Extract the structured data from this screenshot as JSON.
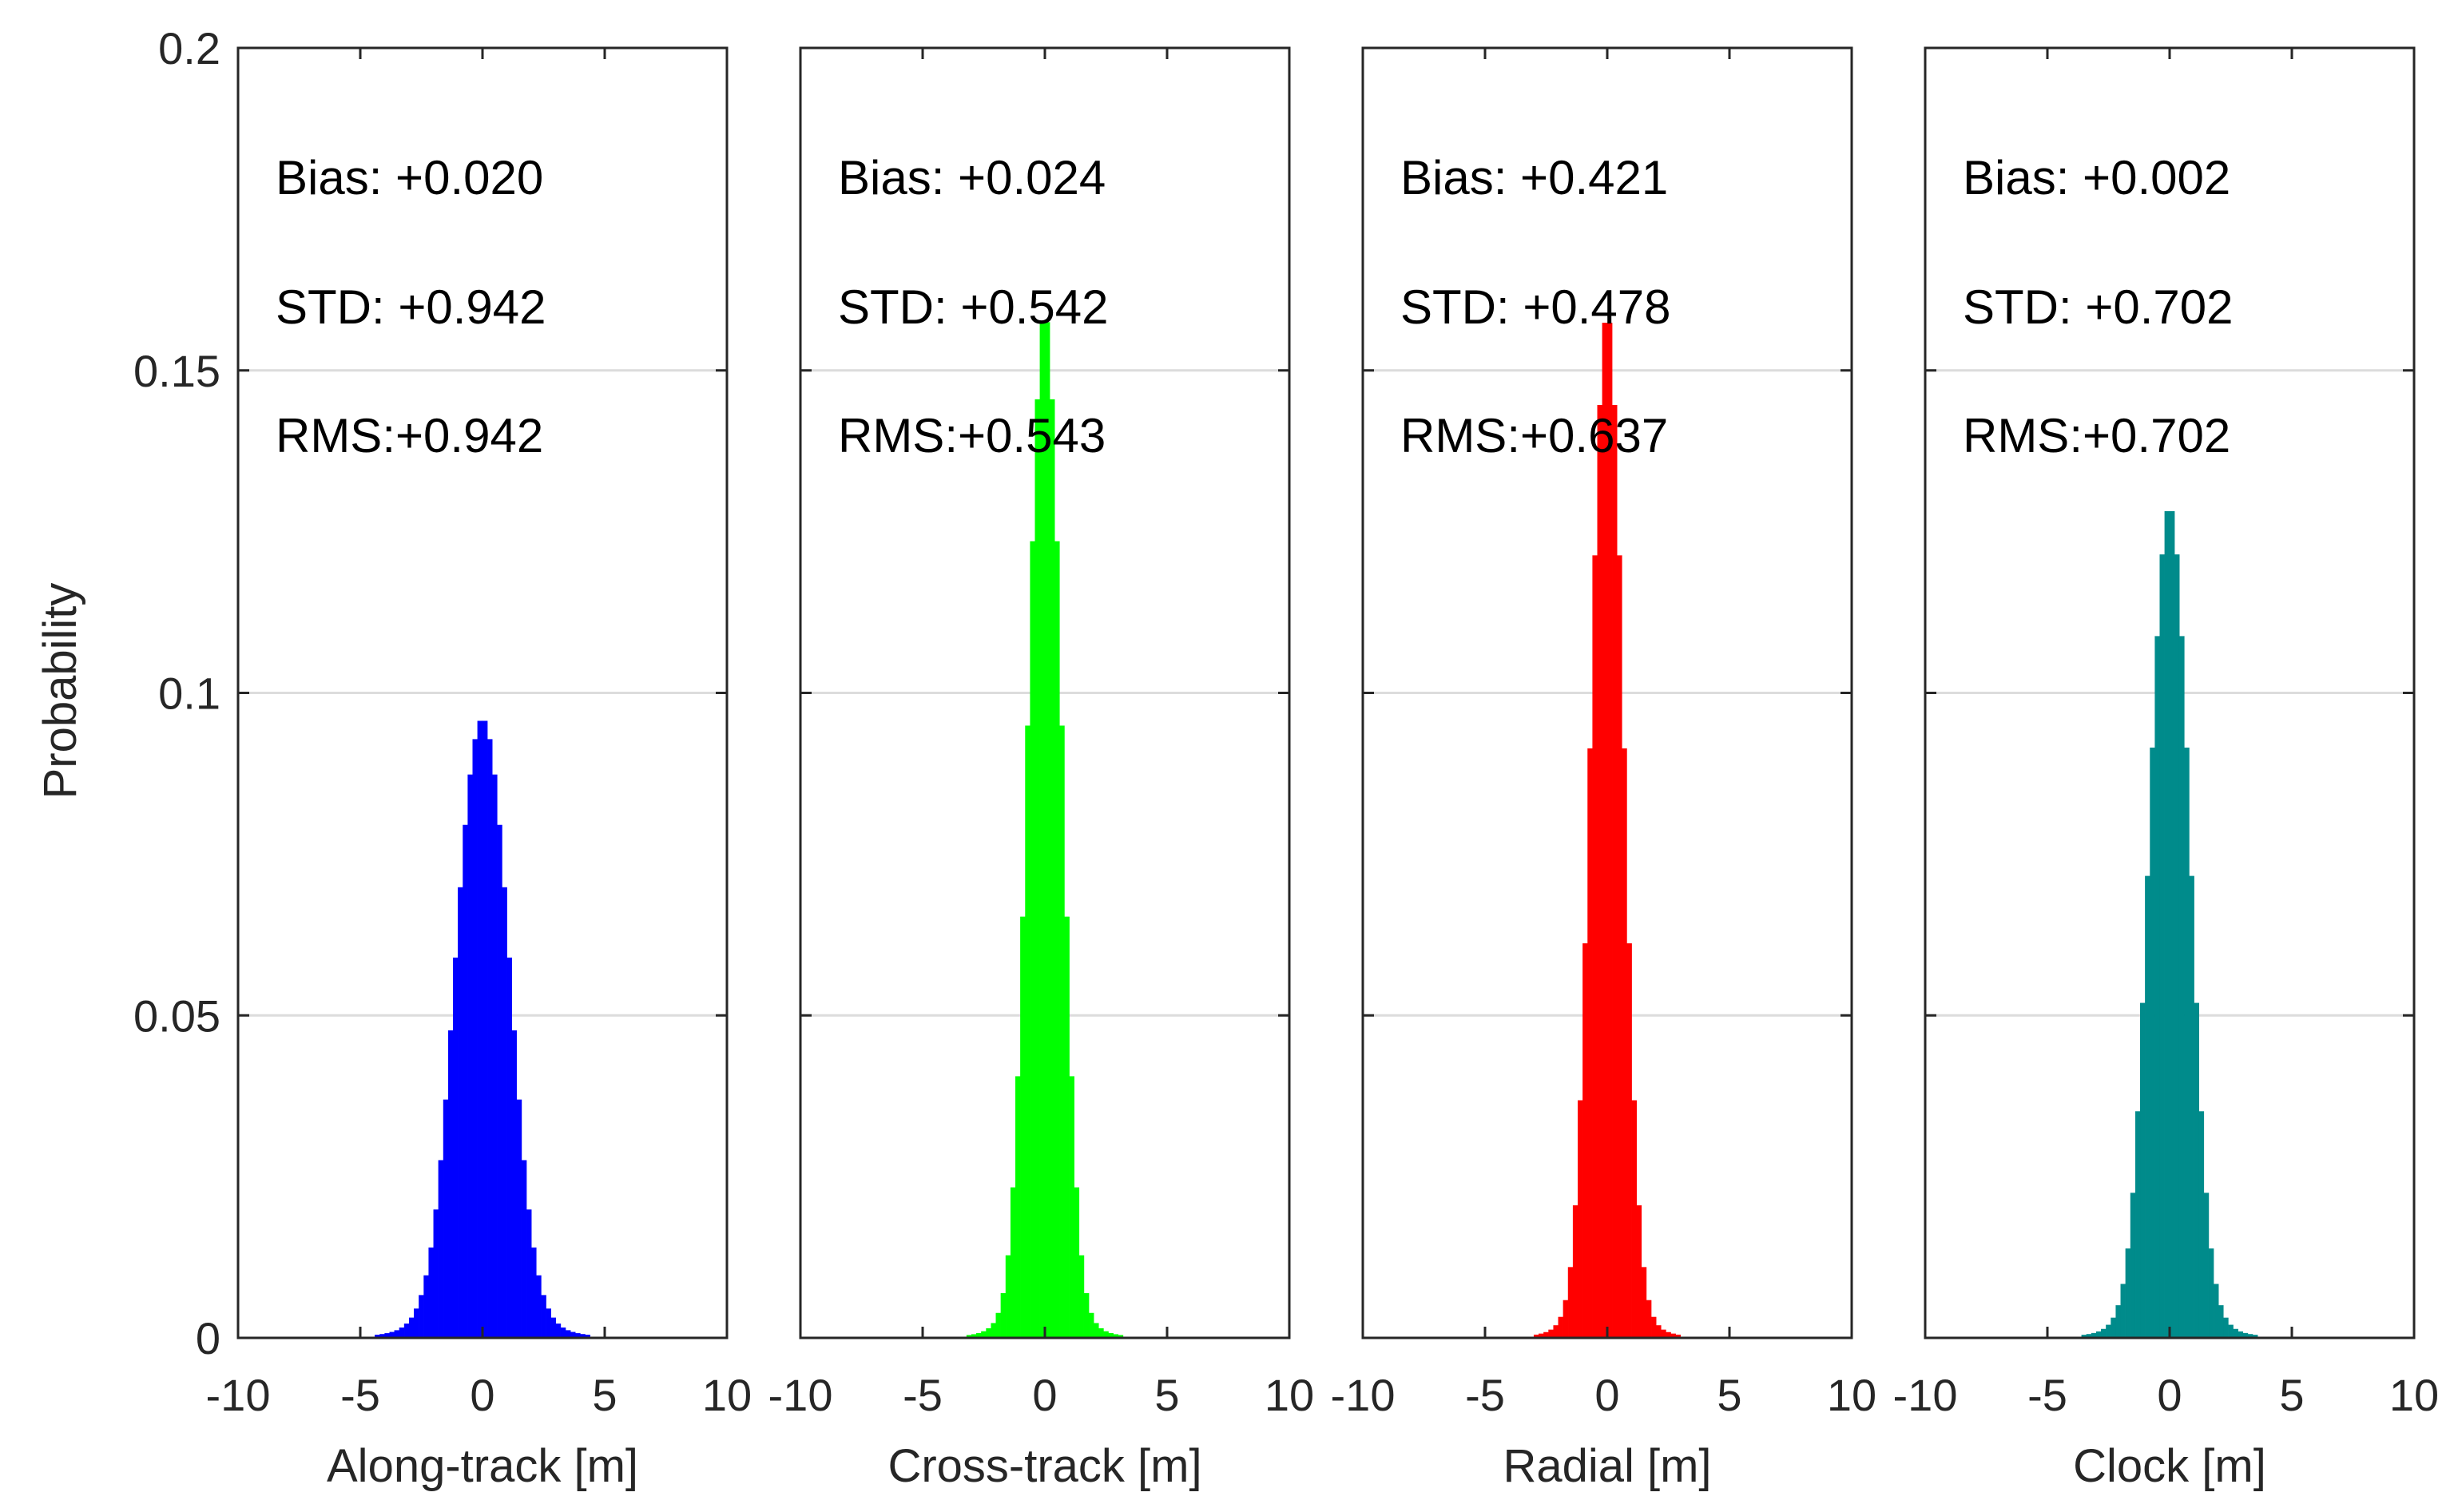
{
  "chart_data": {
    "type": "bar",
    "subtype": "histogram",
    "ylabel": "Probability",
    "ylim": [
      0,
      0.2
    ],
    "yticks": [
      0,
      0.05,
      0.1,
      0.15,
      0.2
    ],
    "ytick_labels": [
      "0",
      "0.05",
      "0.1",
      "0.15",
      "0.2"
    ],
    "xlim": [
      -10,
      10
    ],
    "xticks": [
      -10,
      -5,
      0,
      5,
      10
    ],
    "xtick_labels": [
      "-10",
      "-5",
      "0",
      "5",
      "10"
    ],
    "grid": "horizontal",
    "bin_width": 0.2,
    "panels": [
      {
        "xlabel": "Along-track [m]",
        "color": "#0000ff",
        "stats": [
          "Bias: +0.020",
          "STD: +0.942",
          "RMS:+0.942"
        ],
        "peak": 0.096,
        "spread": 1.0
      },
      {
        "xlabel": "Cross-track [m]",
        "color": "#00ff00",
        "stats": [
          "Bias: +0.024",
          "STD: +0.542",
          "RMS:+0.543"
        ],
        "peak": 0.159,
        "spread": 0.62
      },
      {
        "xlabel": "Radial [m]",
        "color": "#ff0000",
        "stats": [
          "Bias: +0.421",
          "STD: +0.478",
          "RMS:+0.637"
        ],
        "peak": 0.159,
        "spread": 0.6
      },
      {
        "xlabel": "Clock [m]",
        "color": "#008b8b",
        "stats": [
          "Bias: +0.002",
          "STD: +0.702",
          "RMS:+0.702"
        ],
        "peak": 0.129,
        "spread": 0.75
      }
    ]
  }
}
